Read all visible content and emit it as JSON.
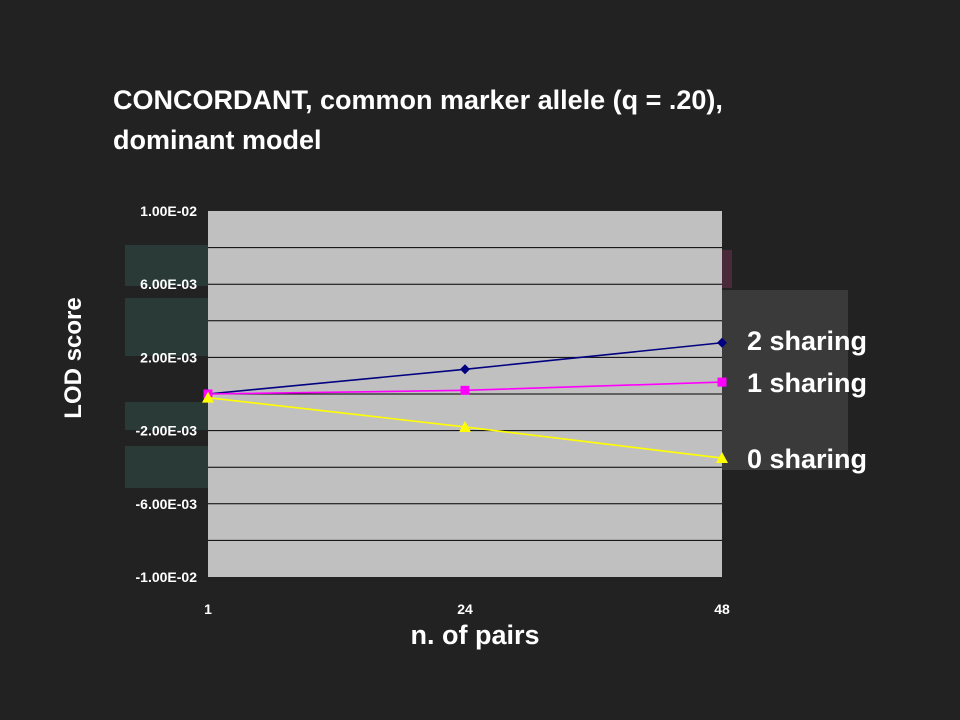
{
  "title": {
    "line1": "CONCORDANT, common marker allele (q = .20),",
    "line2": "dominant model"
  },
  "chart_data": {
    "type": "line",
    "title": "CONCORDANT, common marker allele (q = .20), dominant model",
    "xlabel": "n. of pairs",
    "ylabel": "LOD score",
    "categories": [
      "1",
      "24",
      "48"
    ],
    "ylim": [
      -0.01,
      0.01
    ],
    "yticks": [
      "1.00E-02",
      "6.00E-03",
      "2.00E-03",
      "-2.00E-03",
      "-6.00E-03",
      "-1.00E-02"
    ],
    "ytick_values": [
      0.01,
      0.006,
      0.002,
      -0.002,
      -0.006,
      -0.01
    ],
    "grid": true,
    "plot_background": "#c0c0c0",
    "series": [
      {
        "name": "2 sharing",
        "values": [
          0.0,
          0.00135,
          0.0028
        ],
        "color": "#000080",
        "marker": "diamond"
      },
      {
        "name": "1 sharing",
        "values": [
          0.0,
          0.0002,
          0.00065
        ],
        "color": "#ff00ff",
        "marker": "square"
      },
      {
        "name": "0 sharing",
        "values": [
          -0.0002,
          -0.0018,
          -0.0035
        ],
        "color": "#ffff00",
        "marker": "triangle"
      }
    ]
  }
}
